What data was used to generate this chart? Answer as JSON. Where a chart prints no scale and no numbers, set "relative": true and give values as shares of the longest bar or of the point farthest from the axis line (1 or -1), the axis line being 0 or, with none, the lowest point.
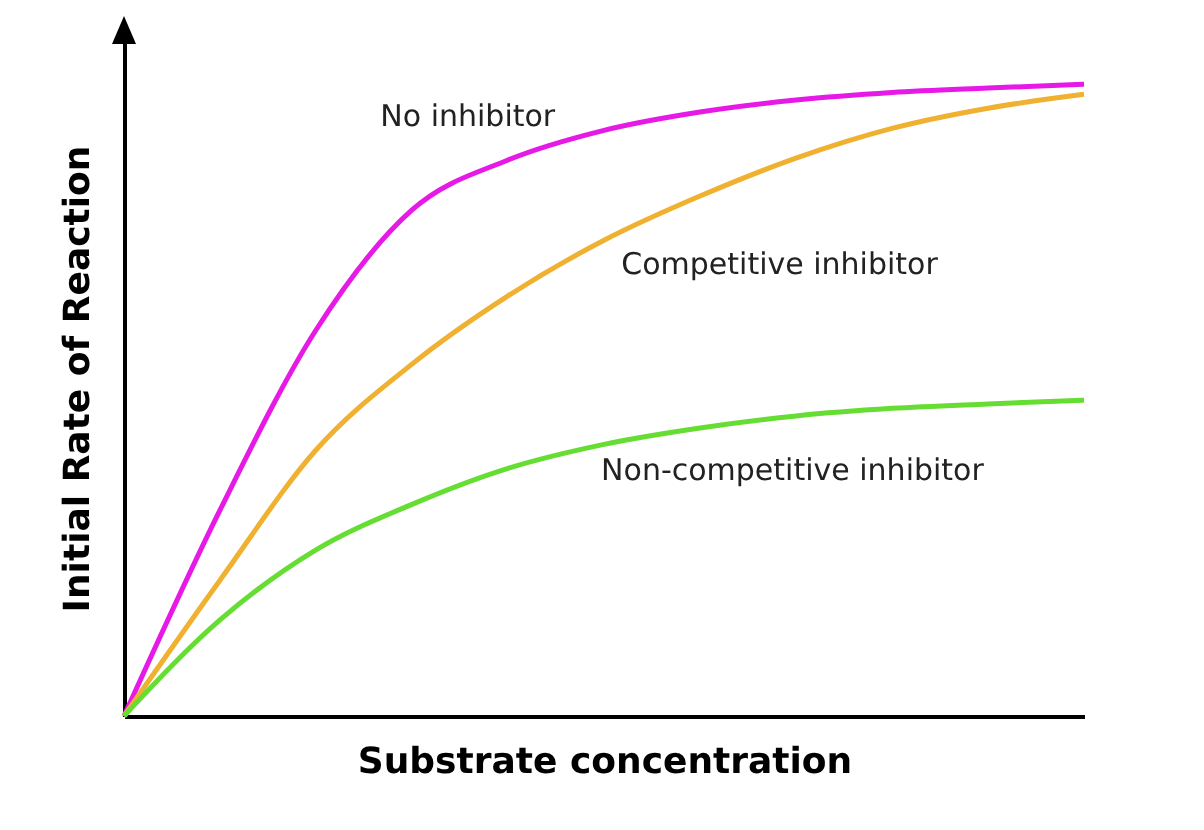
{
  "chart_data": {
    "type": "line",
    "relative": true,
    "xlabel": "Substrate concentration",
    "ylabel": "Initial Rate of Reaction",
    "legend": false,
    "marker": "none",
    "line_style": "solid",
    "categories": [
      null,
      null,
      null,
      null,
      null,
      null,
      null,
      null,
      null,
      null,
      null
    ],
    "series": [
      {
        "name": "No inhibitor",
        "color": "#e619e6",
        "values": [
          0,
          0.326,
          0.611,
          0.801,
          0.88,
          0.927,
          0.956,
          0.975,
          0.987,
          0.994,
          1.0
        ]
      },
      {
        "name": "Competitive inhibitor",
        "color": "#f0b030",
        "values": [
          0,
          0.215,
          0.421,
          0.557,
          0.665,
          0.753,
          0.823,
          0.883,
          0.93,
          0.962,
          0.984
        ]
      },
      {
        "name": "Non-competitive inhibitor",
        "color": "#66dd33",
        "values": [
          0,
          0.152,
          0.263,
          0.335,
          0.392,
          0.43,
          0.456,
          0.475,
          0.487,
          0.494,
          0.5
        ]
      }
    ]
  }
}
